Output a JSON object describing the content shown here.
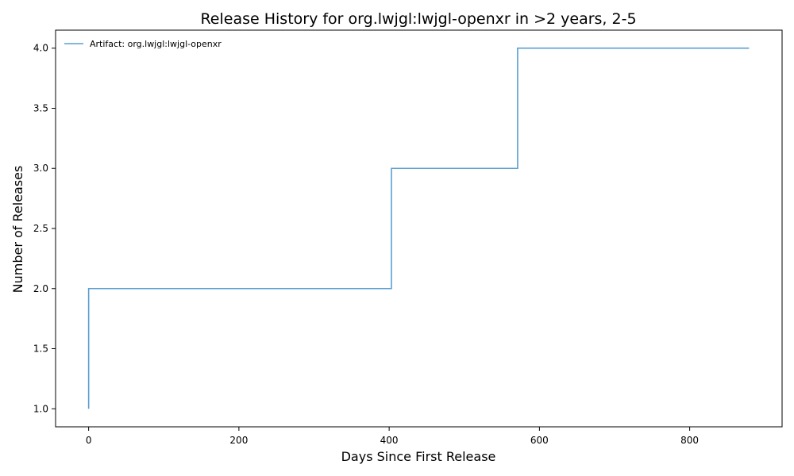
{
  "chart_data": {
    "type": "line",
    "step": "post",
    "title": "Release History for org.lwjgl:lwjgl-openxr in >2 years, 2-5",
    "xlabel": "Days Since First Release",
    "ylabel": "Number of Releases",
    "xlim": [
      -44,
      923
    ],
    "ylim": [
      0.85,
      4.15
    ],
    "xticks": [
      0,
      200,
      400,
      600,
      800
    ],
    "xtick_labels": [
      "0",
      "200",
      "400",
      "600",
      "800"
    ],
    "yticks": [
      1.0,
      1.5,
      2.0,
      2.5,
      3.0,
      3.5,
      4.0
    ],
    "ytick_labels": [
      "1.0",
      "1.5",
      "2.0",
      "2.5",
      "3.0",
      "3.5",
      "4.0"
    ],
    "grid": false,
    "legend": {
      "position": "top-left",
      "entries": [
        "Artifact: org.lwjgl:lwjgl-openxr"
      ]
    },
    "series": [
      {
        "name": "Artifact: org.lwjgl:lwjgl-openxr",
        "color": "#5a9fd0",
        "x": [
          0,
          0,
          403,
          571,
          879
        ],
        "y": [
          1,
          2,
          3,
          4,
          4
        ]
      }
    ]
  }
}
